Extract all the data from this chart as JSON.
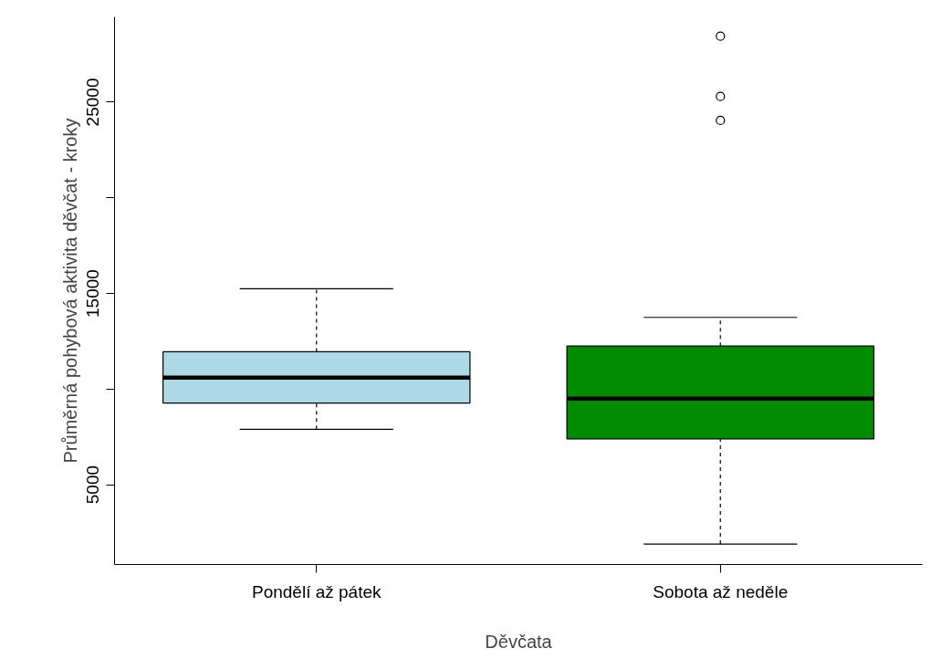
{
  "chart_data": {
    "type": "box",
    "categories": [
      "Pondělí až pátek",
      "Sobota až neděle"
    ],
    "xlabel": "Děvčata",
    "ylabel": "Průměrná pohybová aktivita děvčat - kroky",
    "colors": [
      "#add8e6",
      "#008b00"
    ],
    "boxes": [
      {
        "low": 7900,
        "q1": 9270,
        "median": 10600,
        "q3": 11950,
        "high": 15250
      },
      {
        "low": 1900,
        "q1": 7400,
        "median": 9500,
        "q3": 12250,
        "high": 13750,
        "outliers": [
          24050,
          25300,
          28450
        ]
      }
    ],
    "ylim": [
      830,
      29460
    ],
    "yticks": [
      5000,
      {
        "value": 10000,
        "label": null
      },
      15000,
      {
        "value": 20000,
        "label": null
      },
      25000
    ],
    "grid": false
  }
}
